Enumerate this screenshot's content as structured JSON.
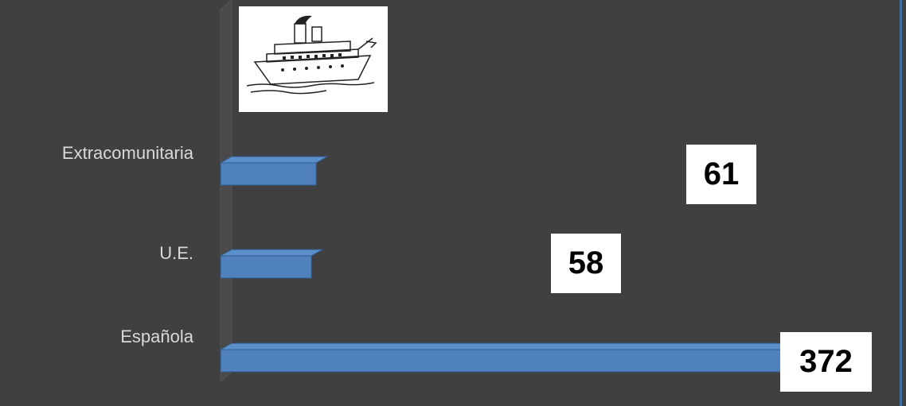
{
  "chart_data": {
    "type": "bar",
    "orientation": "horizontal",
    "categories": [
      "Extracomunitaria",
      "U.E.",
      "Española"
    ],
    "values": [
      61,
      58,
      372
    ],
    "data_labels": [
      "61",
      "58",
      "372"
    ],
    "title": "",
    "xlabel": "",
    "ylabel": "",
    "grid": false,
    "bar_color": "#4f81bd",
    "background_color": "#404040",
    "image": "ship-illustration"
  }
}
